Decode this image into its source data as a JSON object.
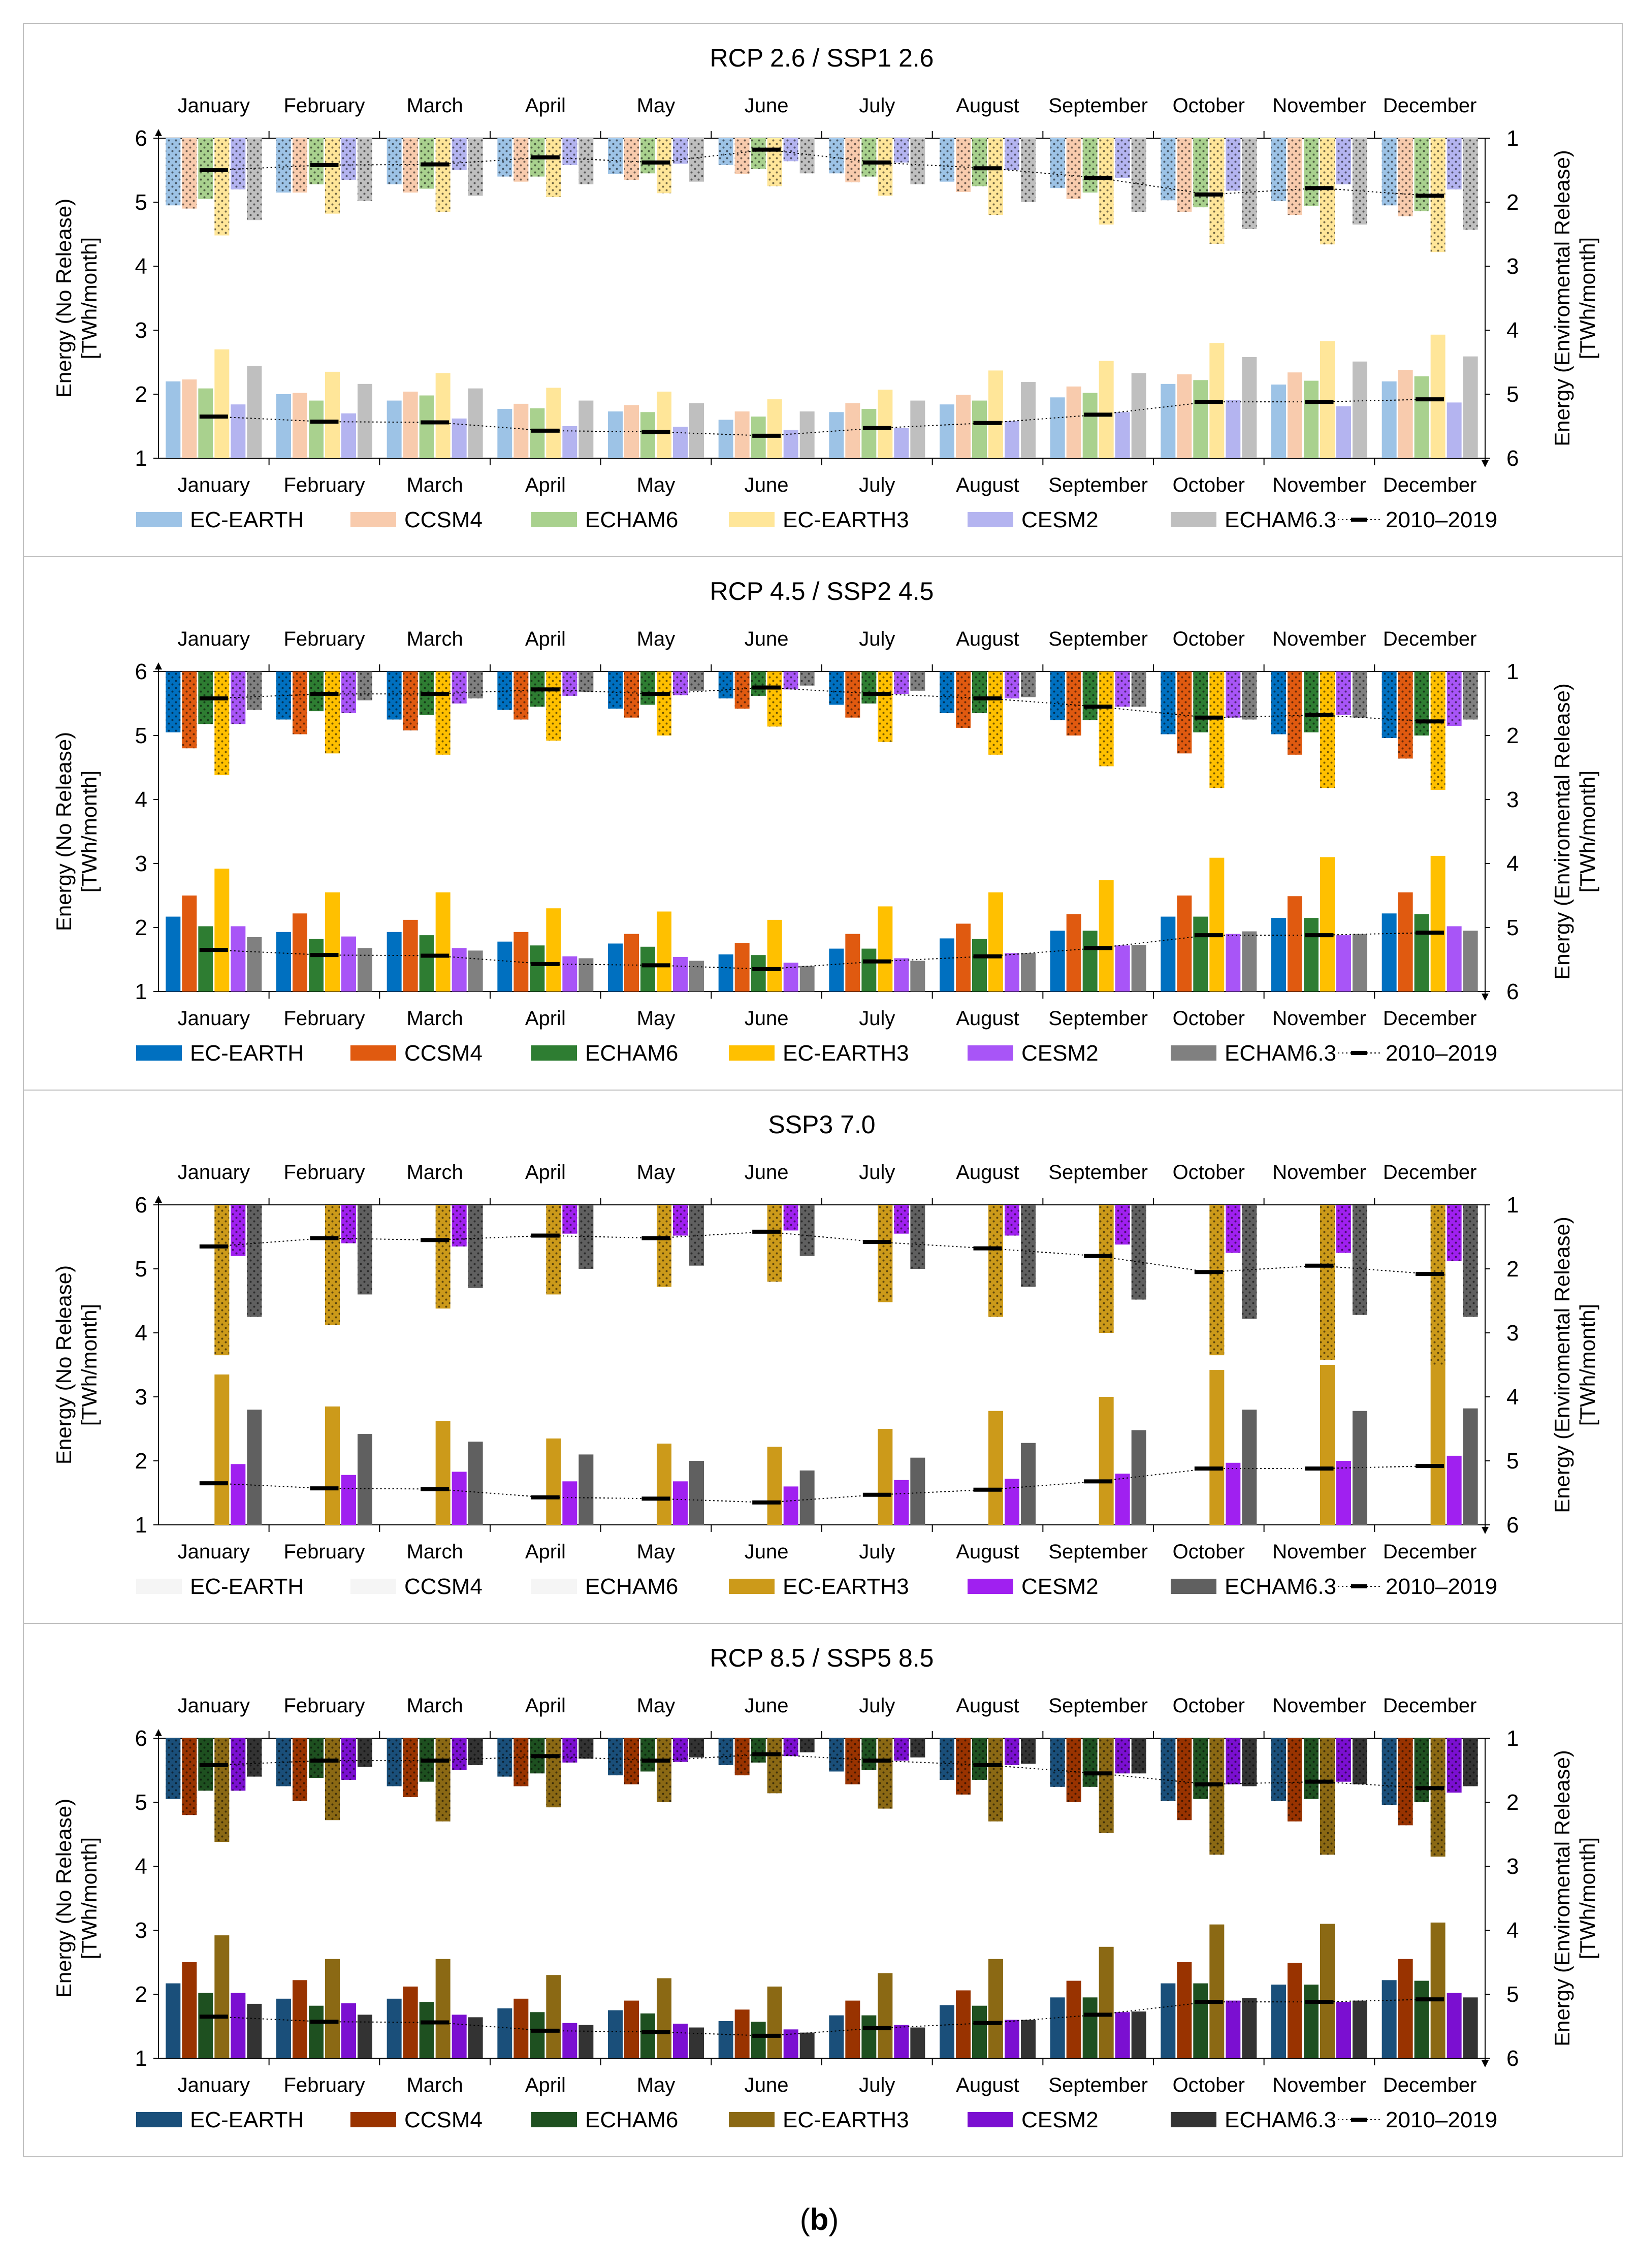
{
  "months": [
    "January",
    "February",
    "March",
    "April",
    "May",
    "June",
    "July",
    "August",
    "September",
    "October",
    "November",
    "December"
  ],
  "left_axis": {
    "label_line1": "Energy (No Release)",
    "label_line2": "[TWh/month]",
    "ticks": [
      "1",
      "2",
      "3",
      "4",
      "5",
      "6"
    ],
    "range": [
      1,
      6
    ]
  },
  "right_axis": {
    "label_line1": "Energy (Enviromental Release)",
    "label_line2": "[TWh/month]",
    "ticks": [
      "1",
      "2",
      "3",
      "4",
      "5",
      "6"
    ],
    "range": [
      1,
      6
    ],
    "direction": "inverted"
  },
  "models": [
    "EC-EARTH",
    "CCSM4",
    "ECHAM6",
    "EC-EARTH3",
    "CESM2",
    "ECHAM6.3"
  ],
  "historical_label": "2010–2019",
  "caption": {
    "open": "(",
    "letter": "b",
    "close": ")"
  },
  "chart_data": [
    {
      "type": "bar",
      "title": "RCP 2.6 / SSP1 2.6",
      "colors": [
        "#9dc3e6",
        "#f8cbad",
        "#a9d18e",
        "#ffe699",
        "#b4b4f0",
        "#bfbfbf"
      ],
      "legend_colors": [
        "#9dc3e6",
        "#f8cbad",
        "#a9d18e",
        "#ffe699",
        "#b4b4f0",
        "#bfbfbf"
      ],
      "hidden_models": [],
      "no_release": [
        [
          2.2,
          2.23,
          2.09,
          2.7,
          1.84,
          2.44
        ],
        [
          2.0,
          2.02,
          1.9,
          2.35,
          1.7,
          2.16
        ],
        [
          1.9,
          2.04,
          1.98,
          2.33,
          1.62,
          2.09
        ],
        [
          1.77,
          1.85,
          1.78,
          2.1,
          1.5,
          1.9
        ],
        [
          1.73,
          1.83,
          1.72,
          2.04,
          1.49,
          1.86
        ],
        [
          1.6,
          1.73,
          1.65,
          1.92,
          1.44,
          1.73
        ],
        [
          1.72,
          1.86,
          1.77,
          2.07,
          1.47,
          1.9
        ],
        [
          1.84,
          1.99,
          1.9,
          2.37,
          1.58,
          2.19
        ],
        [
          1.95,
          2.12,
          2.02,
          2.52,
          1.72,
          2.33
        ],
        [
          2.16,
          2.31,
          2.22,
          2.8,
          1.91,
          2.58
        ],
        [
          2.15,
          2.34,
          2.21,
          2.83,
          1.81,
          2.51
        ],
        [
          2.2,
          2.38,
          2.28,
          2.93,
          1.87,
          2.59
        ]
      ],
      "env_release": [
        [
          2.05,
          2.1,
          1.95,
          2.52,
          1.8,
          2.28
        ],
        [
          1.85,
          1.85,
          1.72,
          2.18,
          1.65,
          1.98
        ],
        [
          1.72,
          1.85,
          1.79,
          2.15,
          1.5,
          1.9
        ],
        [
          1.6,
          1.68,
          1.6,
          1.92,
          1.42,
          1.72
        ],
        [
          1.56,
          1.65,
          1.55,
          1.86,
          1.4,
          1.68
        ],
        [
          1.42,
          1.56,
          1.48,
          1.75,
          1.36,
          1.55
        ],
        [
          1.55,
          1.69,
          1.6,
          1.9,
          1.38,
          1.72
        ],
        [
          1.68,
          1.84,
          1.75,
          2.2,
          1.5,
          2.0
        ],
        [
          1.78,
          1.95,
          1.85,
          2.35,
          1.62,
          2.15
        ],
        [
          1.97,
          2.15,
          2.08,
          2.65,
          1.82,
          2.42
        ],
        [
          1.98,
          2.2,
          2.06,
          2.66,
          1.72,
          2.35
        ],
        [
          2.05,
          2.22,
          2.14,
          2.78,
          1.8,
          2.43
        ]
      ],
      "historical_no_release": [
        1.65,
        1.57,
        1.56,
        1.43,
        1.41,
        1.35,
        1.47,
        1.55,
        1.68,
        1.88,
        1.88,
        1.92
      ],
      "historical_env_release": [
        1.5,
        1.42,
        1.41,
        1.3,
        1.38,
        1.18,
        1.38,
        1.47,
        1.62,
        1.88,
        1.78,
        1.9
      ]
    },
    {
      "type": "bar",
      "title": "RCP 4.5 / SSP2 4.5",
      "colors": [
        "#0070c0",
        "#e05a10",
        "#2e7d32",
        "#ffc000",
        "#a855f7",
        "#808080"
      ],
      "legend_colors": [
        "#0070c0",
        "#e05a10",
        "#2e7d32",
        "#ffc000",
        "#a855f7",
        "#808080"
      ],
      "hidden_models": [],
      "no_release": [
        [
          2.17,
          2.5,
          2.02,
          2.92,
          2.02,
          1.85
        ],
        [
          1.93,
          2.22,
          1.82,
          2.55,
          1.86,
          1.68
        ],
        [
          1.93,
          2.12,
          1.88,
          2.55,
          1.68,
          1.64
        ],
        [
          1.78,
          1.93,
          1.72,
          2.3,
          1.55,
          1.52
        ],
        [
          1.75,
          1.9,
          1.7,
          2.25,
          1.54,
          1.48
        ],
        [
          1.58,
          1.76,
          1.57,
          2.12,
          1.45,
          1.4
        ],
        [
          1.67,
          1.9,
          1.67,
          2.33,
          1.52,
          1.48
        ],
        [
          1.83,
          2.06,
          1.82,
          2.55,
          1.6,
          1.6
        ],
        [
          1.95,
          2.21,
          1.95,
          2.74,
          1.72,
          1.73
        ],
        [
          2.17,
          2.5,
          2.17,
          3.09,
          1.9,
          1.94
        ],
        [
          2.15,
          2.49,
          2.15,
          3.1,
          1.88,
          1.9
        ],
        [
          2.22,
          2.55,
          2.21,
          3.12,
          2.02,
          1.95
        ]
      ],
      "env_release": [
        [
          1.95,
          2.2,
          1.82,
          2.62,
          1.82,
          1.6
        ],
        [
          1.75,
          1.98,
          1.62,
          2.28,
          1.65,
          1.45
        ],
        [
          1.75,
          1.92,
          1.68,
          2.3,
          1.5,
          1.42
        ],
        [
          1.6,
          1.75,
          1.55,
          2.08,
          1.38,
          1.32
        ],
        [
          1.58,
          1.72,
          1.52,
          2.0,
          1.37,
          1.3
        ],
        [
          1.42,
          1.58,
          1.38,
          1.86,
          1.28,
          1.22
        ],
        [
          1.52,
          1.72,
          1.5,
          2.1,
          1.35,
          1.3
        ],
        [
          1.65,
          1.88,
          1.65,
          2.3,
          1.42,
          1.4
        ],
        [
          1.76,
          2.0,
          1.76,
          2.48,
          1.55,
          1.55
        ],
        [
          1.98,
          2.28,
          1.95,
          2.82,
          1.72,
          1.75
        ],
        [
          1.98,
          2.3,
          1.95,
          2.82,
          1.68,
          1.72
        ],
        [
          2.04,
          2.36,
          2.0,
          2.85,
          1.85,
          1.75
        ]
      ],
      "historical_no_release": [
        1.65,
        1.57,
        1.56,
        1.43,
        1.41,
        1.35,
        1.47,
        1.55,
        1.68,
        1.88,
        1.88,
        1.92
      ],
      "historical_env_release": [
        1.42,
        1.35,
        1.35,
        1.28,
        1.35,
        1.25,
        1.35,
        1.42,
        1.55,
        1.72,
        1.68,
        1.78
      ]
    },
    {
      "type": "bar",
      "title": "SSP3 7.0",
      "colors": [
        "#f5f5f5",
        "#f5f5f5",
        "#f5f5f5",
        "#cc9a1a",
        "#a020f0",
        "#606060"
      ],
      "legend_colors": [
        "#f5f5f5",
        "#f5f5f5",
        "#f5f5f5",
        "#cc9a1a",
        "#a020f0",
        "#606060"
      ],
      "hidden_models": [
        0,
        1,
        2
      ],
      "no_release": [
        [
          0,
          0,
          0,
          3.35,
          1.95,
          2.8
        ],
        [
          0,
          0,
          0,
          2.85,
          1.78,
          2.42
        ],
        [
          0,
          0,
          0,
          2.62,
          1.83,
          2.3
        ],
        [
          0,
          0,
          0,
          2.35,
          1.68,
          2.1
        ],
        [
          0,
          0,
          0,
          2.27,
          1.68,
          2.0
        ],
        [
          0,
          0,
          0,
          2.22,
          1.6,
          1.85
        ],
        [
          0,
          0,
          0,
          2.5,
          1.7,
          2.05
        ],
        [
          0,
          0,
          0,
          2.78,
          1.72,
          2.28
        ],
        [
          0,
          0,
          0,
          3.0,
          1.8,
          2.48
        ],
        [
          0,
          0,
          0,
          3.42,
          1.97,
          2.8
        ],
        [
          0,
          0,
          0,
          3.5,
          2.0,
          2.78
        ],
        [
          0,
          0,
          0,
          3.55,
          2.08,
          2.82
        ]
      ],
      "env_release": [
        [
          0,
          0,
          0,
          3.35,
          1.8,
          2.75
        ],
        [
          0,
          0,
          0,
          2.88,
          1.6,
          2.4
        ],
        [
          0,
          0,
          0,
          2.62,
          1.65,
          2.3
        ],
        [
          0,
          0,
          0,
          2.4,
          1.45,
          2.0
        ],
        [
          0,
          0,
          0,
          2.28,
          1.48,
          1.95
        ],
        [
          0,
          0,
          0,
          2.2,
          1.4,
          1.8
        ],
        [
          0,
          0,
          0,
          2.52,
          1.45,
          2.0
        ],
        [
          0,
          0,
          0,
          2.75,
          1.48,
          2.28
        ],
        [
          0,
          0,
          0,
          3.0,
          1.62,
          2.48
        ],
        [
          0,
          0,
          0,
          3.35,
          1.75,
          2.78
        ],
        [
          0,
          0,
          0,
          3.42,
          1.75,
          2.72
        ],
        [
          0,
          0,
          0,
          3.5,
          1.88,
          2.75
        ]
      ],
      "historical_no_release": [
        1.65,
        1.57,
        1.56,
        1.43,
        1.41,
        1.35,
        1.47,
        1.55,
        1.68,
        1.88,
        1.88,
        1.92
      ],
      "historical_env_release": [
        1.65,
        1.52,
        1.55,
        1.48,
        1.52,
        1.42,
        1.58,
        1.68,
        1.8,
        2.05,
        1.95,
        2.08
      ]
    },
    {
      "type": "bar",
      "title": "RCP 8.5 / SSP5 8.5",
      "colors": [
        "#1a4f7a",
        "#993300",
        "#1e5020",
        "#8b6914",
        "#7b0fd1",
        "#333333"
      ],
      "legend_colors": [
        "#1a4f7a",
        "#993300",
        "#1e5020",
        "#8b6914",
        "#7b0fd1",
        "#333333"
      ],
      "hidden_models": [],
      "no_release": [
        [
          2.17,
          2.5,
          2.02,
          2.92,
          2.02,
          1.85
        ],
        [
          1.93,
          2.22,
          1.82,
          2.55,
          1.86,
          1.68
        ],
        [
          1.93,
          2.12,
          1.88,
          2.55,
          1.68,
          1.64
        ],
        [
          1.78,
          1.93,
          1.72,
          2.3,
          1.55,
          1.52
        ],
        [
          1.75,
          1.9,
          1.7,
          2.25,
          1.54,
          1.48
        ],
        [
          1.58,
          1.76,
          1.57,
          2.12,
          1.45,
          1.4
        ],
        [
          1.67,
          1.9,
          1.67,
          2.33,
          1.52,
          1.48
        ],
        [
          1.83,
          2.06,
          1.82,
          2.55,
          1.6,
          1.6
        ],
        [
          1.95,
          2.21,
          1.95,
          2.74,
          1.72,
          1.73
        ],
        [
          2.17,
          2.5,
          2.17,
          3.09,
          1.9,
          1.94
        ],
        [
          2.15,
          2.49,
          2.15,
          3.1,
          1.88,
          1.9
        ],
        [
          2.22,
          2.55,
          2.21,
          3.12,
          2.02,
          1.95
        ]
      ],
      "env_release": [
        [
          1.95,
          2.2,
          1.82,
          2.62,
          1.82,
          1.6
        ],
        [
          1.75,
          1.98,
          1.62,
          2.28,
          1.65,
          1.45
        ],
        [
          1.75,
          1.92,
          1.68,
          2.3,
          1.5,
          1.42
        ],
        [
          1.6,
          1.75,
          1.55,
          2.08,
          1.38,
          1.32
        ],
        [
          1.58,
          1.72,
          1.52,
          2.0,
          1.37,
          1.3
        ],
        [
          1.42,
          1.58,
          1.38,
          1.86,
          1.28,
          1.22
        ],
        [
          1.52,
          1.72,
          1.5,
          2.1,
          1.35,
          1.3
        ],
        [
          1.65,
          1.88,
          1.65,
          2.3,
          1.42,
          1.4
        ],
        [
          1.76,
          2.0,
          1.76,
          2.48,
          1.55,
          1.55
        ],
        [
          1.98,
          2.28,
          1.95,
          2.82,
          1.72,
          1.75
        ],
        [
          1.98,
          2.3,
          1.95,
          2.82,
          1.68,
          1.72
        ],
        [
          2.04,
          2.36,
          2.0,
          2.85,
          1.85,
          1.75
        ]
      ],
      "historical_no_release": [
        1.65,
        1.57,
        1.56,
        1.43,
        1.41,
        1.35,
        1.47,
        1.55,
        1.68,
        1.88,
        1.88,
        1.92
      ],
      "historical_env_release": [
        1.42,
        1.35,
        1.35,
        1.28,
        1.35,
        1.25,
        1.35,
        1.42,
        1.55,
        1.72,
        1.68,
        1.78
      ]
    }
  ]
}
